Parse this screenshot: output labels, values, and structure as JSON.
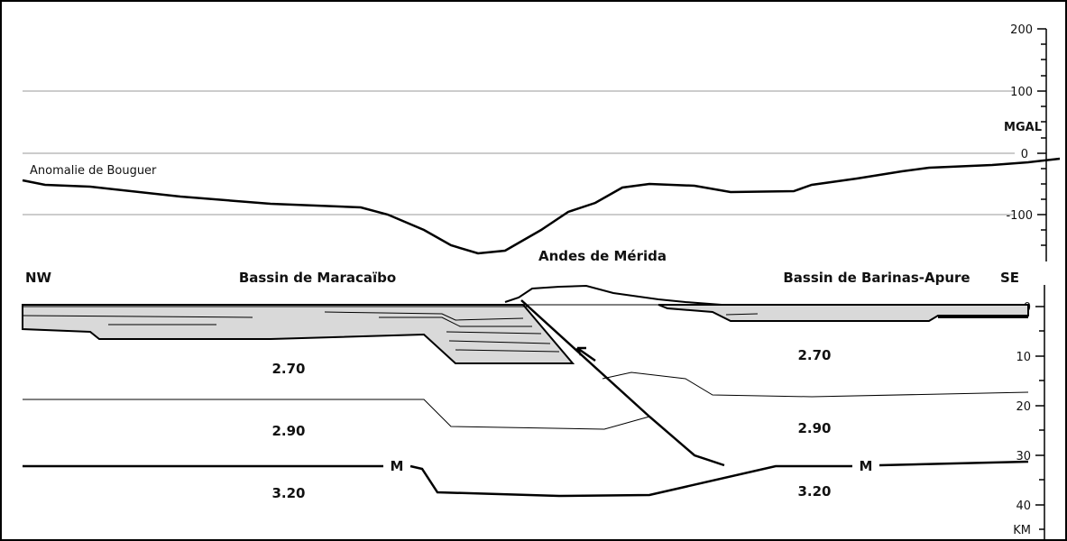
{
  "annotation": "Anomalie de Bouguer",
  "regions": {
    "center": "Andes de Mérida",
    "left": "Bassin de Maracaïbo",
    "right": "Bassin de Barinas-Apure"
  },
  "directions": {
    "left": "NW",
    "right": "SE"
  },
  "gravity_axis": {
    "unit": "MGAL",
    "ticks": [
      200,
      100,
      0,
      -100
    ]
  },
  "depth_axis": {
    "unit": "KM",
    "ticks": [
      0,
      10,
      20,
      30,
      40
    ]
  },
  "densities": {
    "left": [
      "2.70",
      "2.90",
      "3.20"
    ],
    "right": [
      "2.70",
      "2.90",
      "3.20"
    ]
  },
  "moho_labels": [
    "M",
    "M"
  ]
}
